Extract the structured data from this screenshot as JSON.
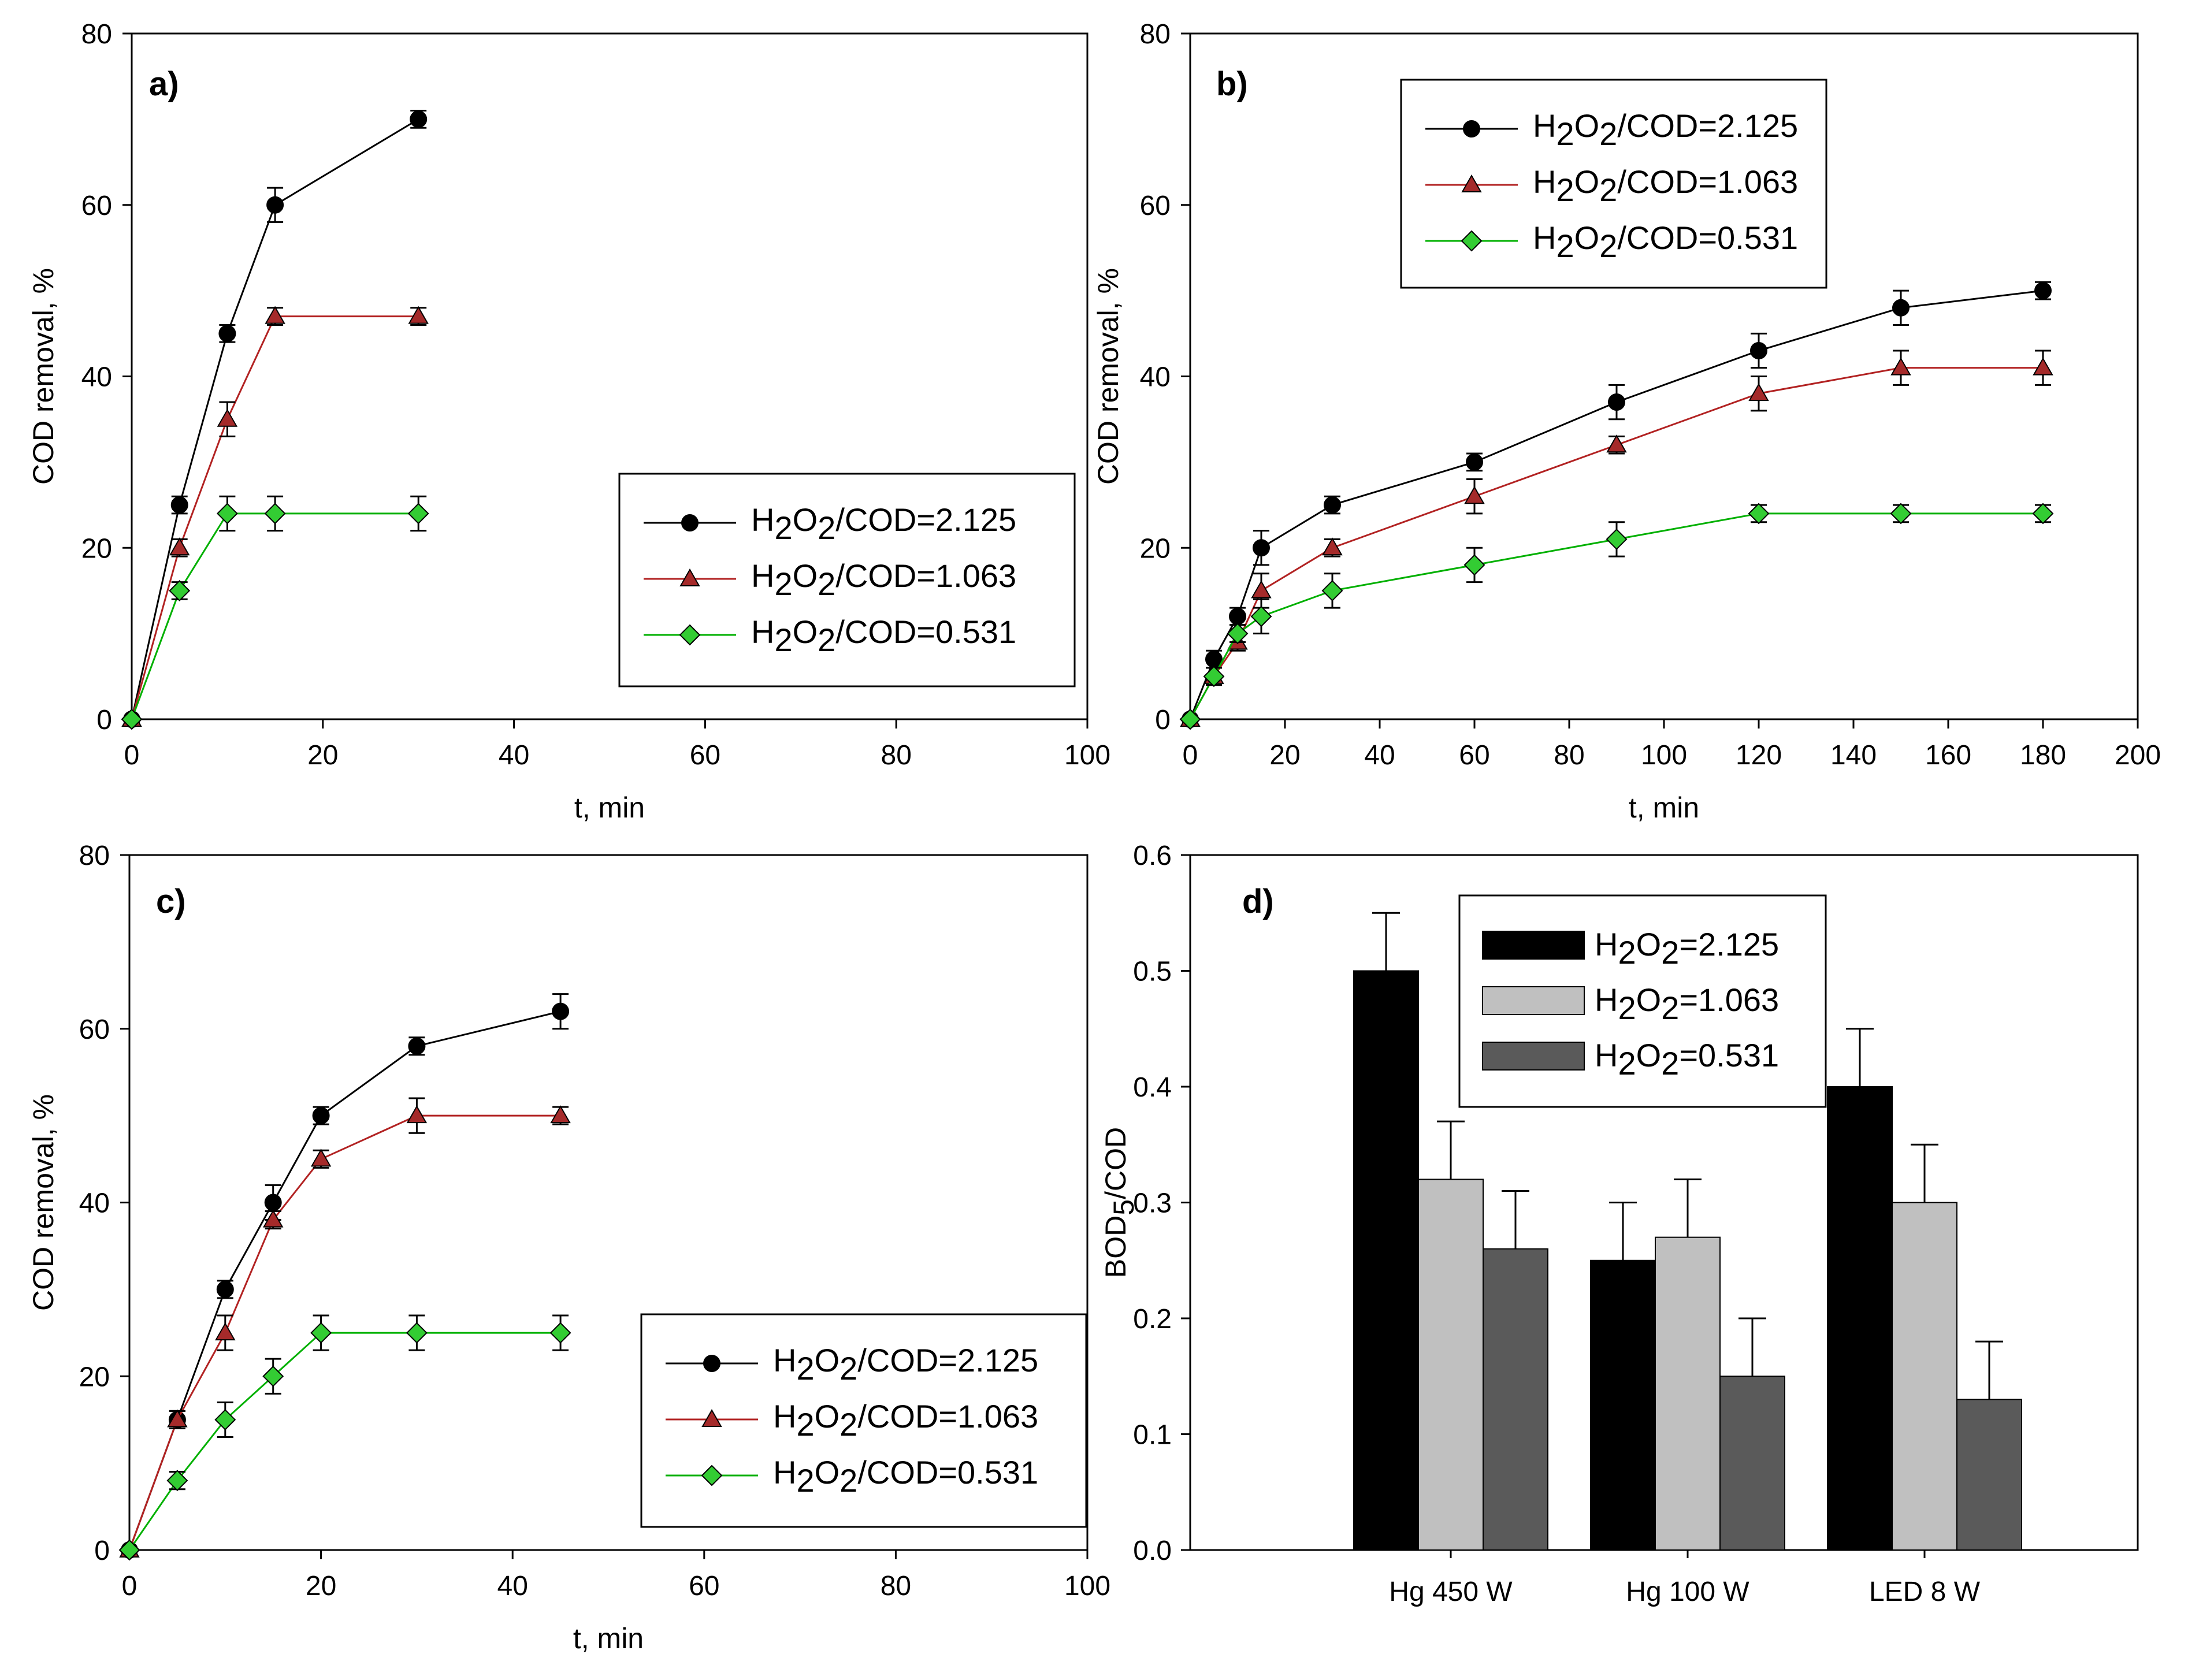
{
  "chart_data": [
    {
      "id": "a",
      "type": "line",
      "panel_label": "a)",
      "xlabel": "t, min",
      "ylabel": "COD removal, %",
      "xlim": [
        0,
        100
      ],
      "ylim": [
        0,
        80
      ],
      "xticks": [
        "0",
        "20",
        "40",
        "60",
        "80",
        "100"
      ],
      "yticks": [
        "0",
        "20",
        "40",
        "60",
        "80"
      ],
      "legend_position": "lower-right",
      "series": [
        {
          "name": "H2O2/COD=2.125",
          "legend": {
            "prefix": "H",
            "sub1": "2",
            "mid": "O",
            "sub2": "2",
            "suffix": "/COD=2.125"
          },
          "marker": "circle",
          "color": "#000000",
          "line_color": "#000000",
          "x": [
            0,
            5,
            10,
            15,
            30
          ],
          "y": [
            0,
            25,
            45,
            60,
            70
          ],
          "err": [
            0,
            1,
            1,
            2,
            1
          ]
        },
        {
          "name": "H2O2/COD=1.063",
          "legend": {
            "prefix": "H",
            "sub1": "2",
            "mid": "O",
            "sub2": "2",
            "suffix": "/COD=1.063"
          },
          "marker": "triangle",
          "color": "#a52a2a",
          "line_color": "#b22222",
          "x": [
            0,
            5,
            10,
            15,
            30
          ],
          "y": [
            0,
            20,
            35,
            47,
            47
          ],
          "err": [
            0,
            1,
            2,
            1,
            1
          ]
        },
        {
          "name": "H2O2/COD=0.531",
          "legend": {
            "prefix": "H",
            "sub1": "2",
            "mid": "O",
            "sub2": "2",
            "suffix": "/COD=0.531"
          },
          "marker": "diamond",
          "color": "#33cc33",
          "line_color": "#00b000",
          "x": [
            0,
            5,
            10,
            15,
            30
          ],
          "y": [
            0,
            15,
            24,
            24,
            24
          ],
          "err": [
            0,
            1,
            2,
            2,
            2
          ]
        }
      ]
    },
    {
      "id": "b",
      "type": "line",
      "panel_label": "b)",
      "xlabel": "t, min",
      "ylabel": "COD removal, %",
      "xlim": [
        0,
        200
      ],
      "ylim": [
        0,
        80
      ],
      "xticks": [
        "0",
        "20",
        "40",
        "60",
        "80",
        "100",
        "120",
        "140",
        "160",
        "180",
        "200"
      ],
      "yticks": [
        "0",
        "20",
        "40",
        "60",
        "80"
      ],
      "legend_position": "upper-center",
      "series": [
        {
          "name": "H2O2/COD=2.125",
          "legend": {
            "prefix": "H",
            "sub1": "2",
            "mid": "O",
            "sub2": "2",
            "suffix": "/COD=2.125"
          },
          "marker": "circle",
          "color": "#000000",
          "line_color": "#000000",
          "x": [
            0,
            5,
            10,
            15,
            30,
            60,
            90,
            120,
            150,
            180
          ],
          "y": [
            0,
            7,
            12,
            20,
            25,
            30,
            37,
            43,
            48,
            50
          ],
          "err": [
            0,
            1,
            1,
            2,
            1,
            1,
            2,
            2,
            2,
            1
          ]
        },
        {
          "name": "H2O2/COD=1.063",
          "legend": {
            "prefix": "H",
            "sub1": "2",
            "mid": "O",
            "sub2": "2",
            "suffix": "/COD=1.063"
          },
          "marker": "triangle",
          "color": "#a52a2a",
          "line_color": "#b22222",
          "x": [
            0,
            5,
            10,
            15,
            30,
            60,
            90,
            120,
            150,
            180
          ],
          "y": [
            0,
            5,
            9,
            15,
            20,
            26,
            32,
            38,
            41,
            41
          ],
          "err": [
            0,
            1,
            1,
            2,
            1,
            2,
            1,
            2,
            2,
            2
          ]
        },
        {
          "name": "H2O2/COD=0.531",
          "legend": {
            "prefix": "H",
            "sub1": "2",
            "mid": "O",
            "sub2": "2",
            "suffix": "/COD=0.531"
          },
          "marker": "diamond",
          "color": "#33cc33",
          "line_color": "#00b000",
          "x": [
            0,
            5,
            10,
            15,
            30,
            60,
            90,
            120,
            150,
            180
          ],
          "y": [
            0,
            5,
            10,
            12,
            15,
            18,
            21,
            24,
            24,
            24
          ],
          "err": [
            0,
            1,
            1,
            2,
            2,
            2,
            2,
            1,
            1,
            1
          ]
        }
      ]
    },
    {
      "id": "c",
      "type": "line",
      "panel_label": "c)",
      "xlabel": "t, min",
      "ylabel": "COD removal, %",
      "xlim": [
        0,
        100
      ],
      "ylim": [
        0,
        80
      ],
      "xticks": [
        "0",
        "20",
        "40",
        "60",
        "80",
        "100"
      ],
      "yticks": [
        "0",
        "20",
        "40",
        "60",
        "80"
      ],
      "legend_position": "lower-right",
      "series": [
        {
          "name": "H2O2/COD=2.125",
          "legend": {
            "prefix": "H",
            "sub1": "2",
            "mid": "O",
            "sub2": "2",
            "suffix": "/COD=2.125"
          },
          "marker": "circle",
          "color": "#000000",
          "line_color": "#000000",
          "x": [
            0,
            5,
            10,
            15,
            20,
            30,
            45
          ],
          "y": [
            0,
            15,
            30,
            40,
            50,
            58,
            62
          ],
          "err": [
            0,
            1,
            1,
            2,
            1,
            1,
            2
          ]
        },
        {
          "name": "H2O2/COD=1.063",
          "legend": {
            "prefix": "H",
            "sub1": "2",
            "mid": "O",
            "sub2": "2",
            "suffix": "/COD=1.063"
          },
          "marker": "triangle",
          "color": "#a52a2a",
          "line_color": "#b22222",
          "x": [
            0,
            5,
            10,
            15,
            20,
            30,
            45
          ],
          "y": [
            0,
            15,
            25,
            38,
            45,
            50,
            50
          ],
          "err": [
            0,
            1,
            2,
            1,
            1,
            2,
            1
          ]
        },
        {
          "name": "H2O2/COD=0.531",
          "legend": {
            "prefix": "H",
            "sub1": "2",
            "mid": "O",
            "sub2": "2",
            "suffix": "/COD=0.531"
          },
          "marker": "diamond",
          "color": "#33cc33",
          "line_color": "#00b000",
          "x": [
            0,
            5,
            10,
            15,
            20,
            30,
            45
          ],
          "y": [
            0,
            8,
            15,
            20,
            25,
            25,
            25
          ],
          "err": [
            0,
            1,
            2,
            2,
            2,
            2,
            2
          ]
        }
      ]
    },
    {
      "id": "d",
      "type": "bar",
      "panel_label": "d)",
      "xlabel": "",
      "ylabel": "BOD5/COD",
      "ylabel_parts": {
        "main": "BOD",
        "sub": "5",
        "suffix": "/COD"
      },
      "ylim": [
        0,
        0.6
      ],
      "yticks": [
        "0.0",
        "0.1",
        "0.2",
        "0.3",
        "0.4",
        "0.5",
        "0.6"
      ],
      "categories": [
        "Hg 450 W",
        "Hg 100 W",
        "LED 8 W"
      ],
      "legend_position": "top-center",
      "series": [
        {
          "name": "H2O2=2.125",
          "legend": {
            "prefix": "H",
            "sub1": "2",
            "mid": "O",
            "sub2": "2",
            "suffix": "=2.125"
          },
          "color": "#000000",
          "values": [
            0.5,
            0.25,
            0.4
          ],
          "err": [
            0.05,
            0.05,
            0.05
          ]
        },
        {
          "name": "H2O2=1.063",
          "legend": {
            "prefix": "H",
            "sub1": "2",
            "mid": "O",
            "sub2": "2",
            "suffix": "=1.063"
          },
          "color": "#c0c0c0",
          "values": [
            0.32,
            0.27,
            0.3
          ],
          "err": [
            0.05,
            0.05,
            0.05
          ]
        },
        {
          "name": "H2O2=0.531",
          "legend": {
            "prefix": "H",
            "sub1": "2",
            "mid": "O",
            "sub2": "2",
            "suffix": "=0.531"
          },
          "color": "#5a5a5a",
          "values": [
            0.26,
            0.15,
            0.13
          ],
          "err": [
            0.05,
            0.05,
            0.05
          ]
        }
      ]
    }
  ]
}
